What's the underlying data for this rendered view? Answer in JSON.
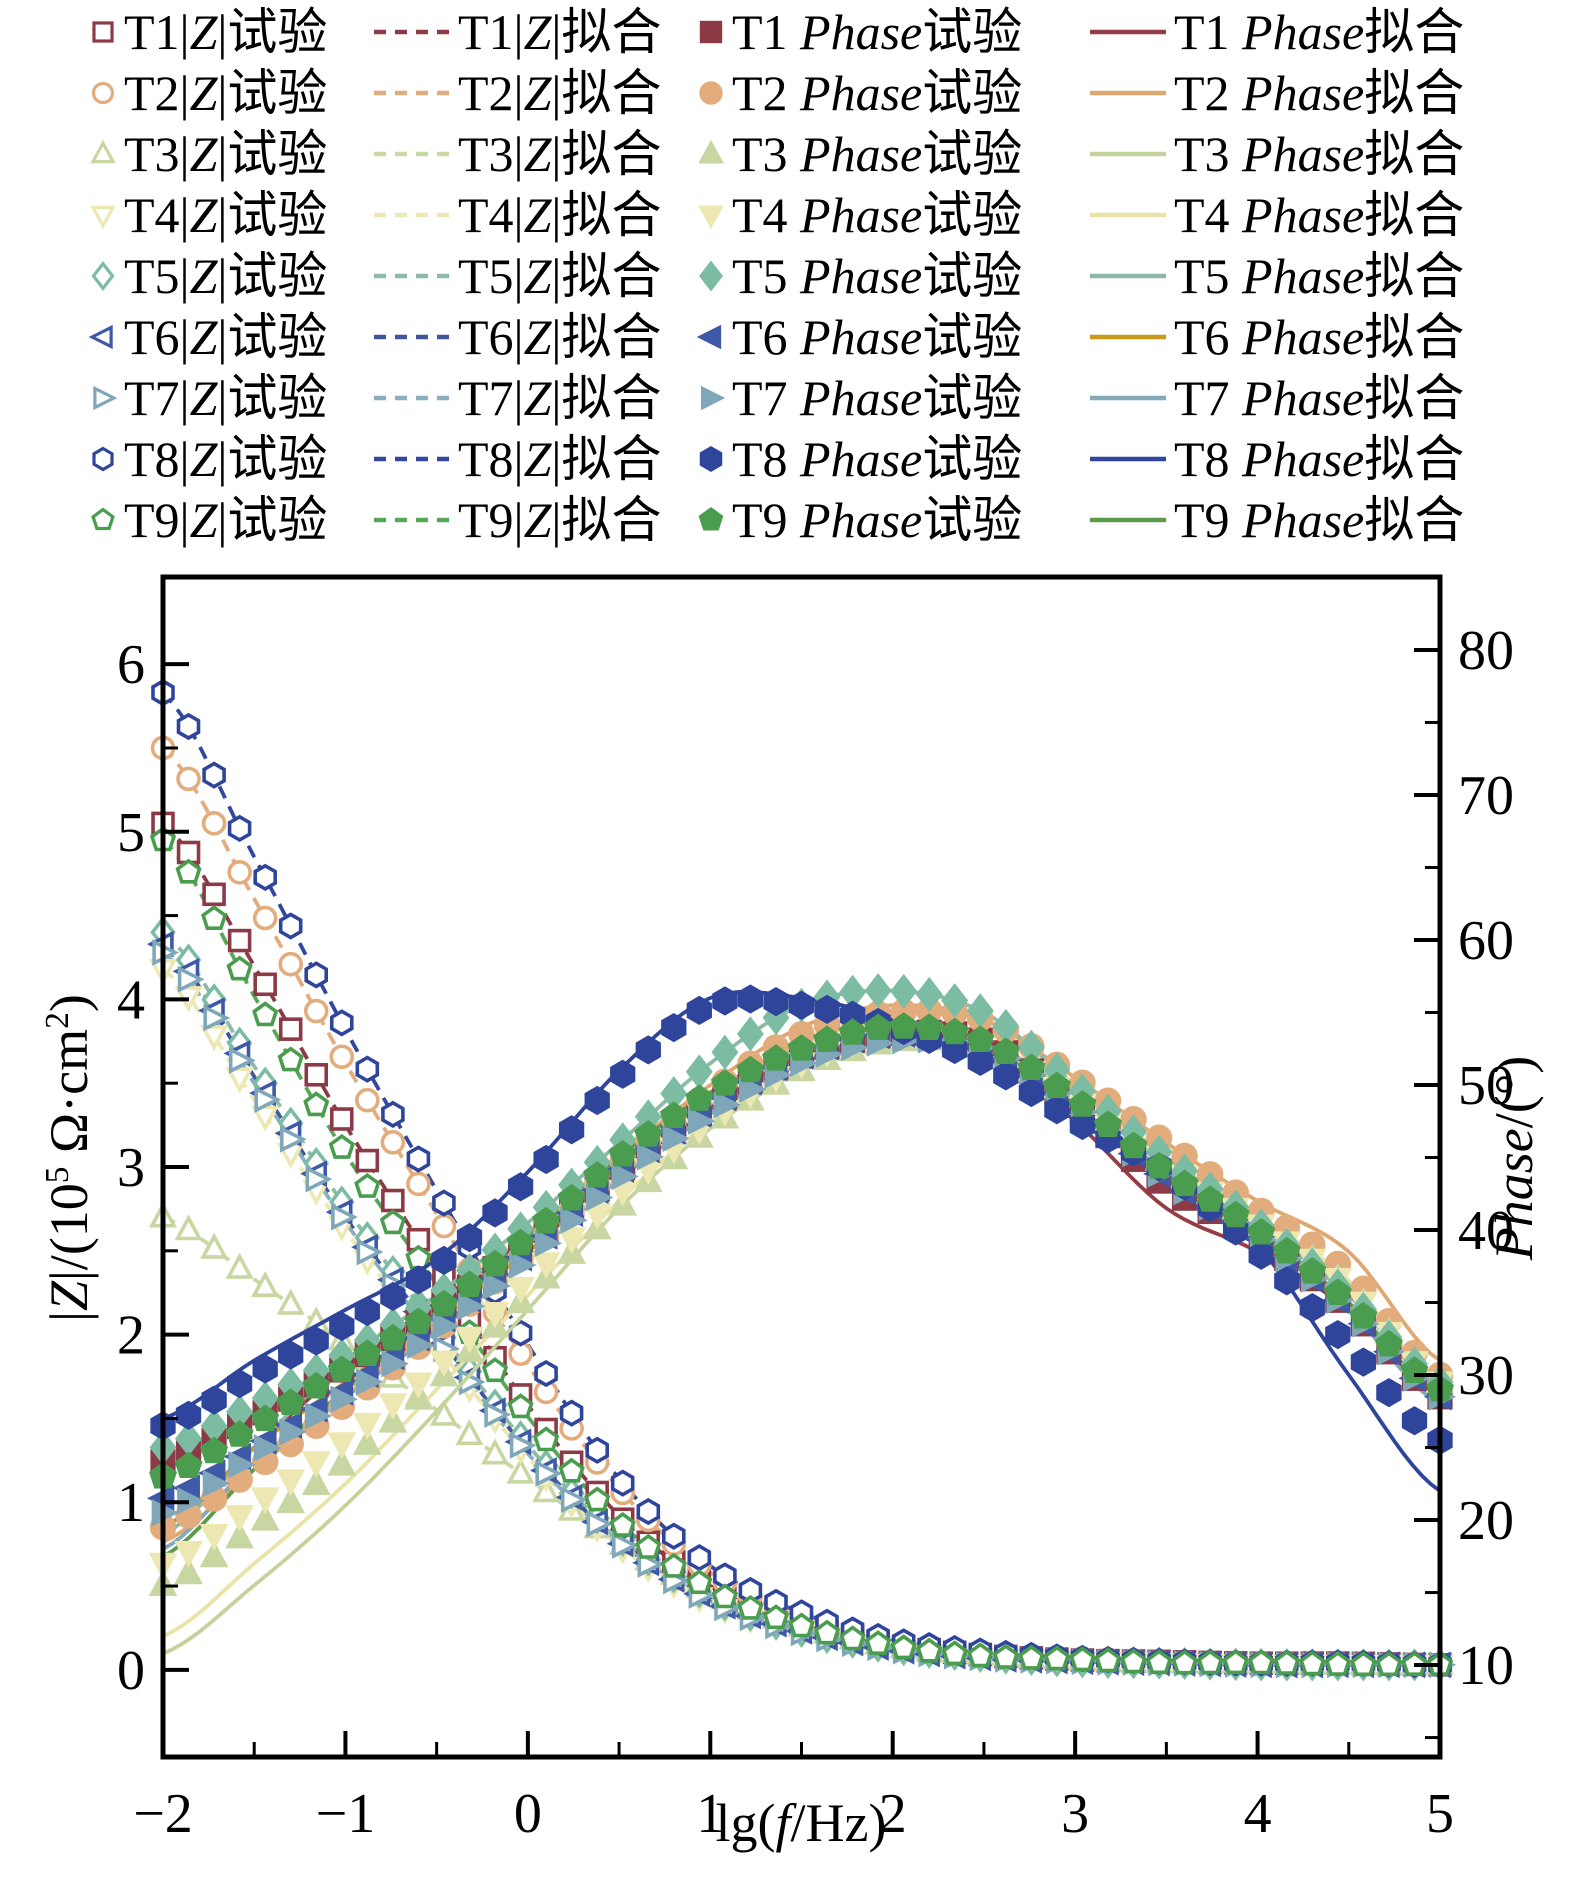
{
  "figure": {
    "background": "#ffffff"
  },
  "legend": {
    "z_wrap": "|",
    "z_letter": "Z",
    "phase_word": "Phase",
    "exp_word": "试验",
    "fit_word": "拟合"
  },
  "axes": {
    "x": {
      "title_pre": "lg(",
      "title_it": "f",
      "title_post": "/Hz)",
      "ticks": [
        "−2",
        "−1",
        "0",
        "1",
        "2",
        "3",
        "4",
        "5"
      ],
      "tick_values": [
        -2,
        -1,
        0,
        1,
        2,
        3,
        4,
        5
      ],
      "minor_step": 0.5,
      "lim": [
        -2,
        5
      ]
    },
    "y_left": {
      "title_p1": "|",
      "title_it": "Z",
      "title_p2": "|/(10",
      "title_sup1": "5",
      "title_p3": " Ω·cm",
      "title_sup2": "2",
      "title_p4": ")",
      "ticks": [
        "0",
        "1",
        "2",
        "3",
        "4",
        "5",
        "6"
      ],
      "tick_values": [
        0,
        1,
        2,
        3,
        4,
        5,
        6
      ],
      "minor_step": 0.5,
      "lim": [
        -0.52,
        6.52
      ]
    },
    "y_right": {
      "title_it": "Phase",
      "title_post": "/(°)",
      "ticks": [
        "10",
        "20",
        "30",
        "40",
        "50",
        "60",
        "70",
        "80"
      ],
      "tick_values": [
        10,
        20,
        30,
        40,
        50,
        60,
        70,
        80
      ],
      "minor_step": 5,
      "lim": [
        3.66,
        85.03
      ]
    }
  },
  "chart_data": {
    "type": "line+scatter dual-axis Bode plot",
    "xlabel": "lg(f/Hz)",
    "ylabel_left": "|Z|/(10^5 Ω·cm^2)",
    "ylabel_right": "Phase/(°)",
    "x_anchors": [
      -2,
      -1.5,
      -1,
      -0.5,
      0,
      0.5,
      1,
      1.5,
      2,
      2.5,
      3,
      3.5,
      4,
      4.5,
      5
    ],
    "series": [
      {
        "id": "T1",
        "marker": "square",
        "color_marker": "#8C3A46",
        "color_dash": "#8C3A46",
        "color_line": "#963E48",
        "z_exp": [
          5.05,
          4.2,
          3.25,
          2.4,
          1.58,
          0.92,
          0.5,
          0.27,
          0.15,
          0.09,
          0.06,
          0.05,
          0.04,
          0.04,
          0.03
        ],
        "z_fit": [
          5.05,
          4.2,
          3.25,
          2.4,
          1.58,
          0.92,
          0.5,
          0.27,
          0.15,
          0.09,
          0.06,
          0.05,
          0.04,
          0.04,
          0.03
        ],
        "phase_exp": [
          24.0,
          27.0,
          30.5,
          34.5,
          39.0,
          44.0,
          48.5,
          52.0,
          53.5,
          53.0,
          48.5,
          43.0,
          39.5,
          34.5,
          28.5
        ],
        "phase_fit": [
          19.5,
          25.0,
          30.5,
          35.0,
          39.5,
          44.5,
          49.0,
          52.5,
          54.0,
          52.5,
          47.5,
          41.5,
          38.5,
          34.5,
          28.5
        ]
      },
      {
        "id": "T2",
        "marker": "circle",
        "color_marker": "#E3AC7D",
        "color_dash": "#E3AC7D",
        "color_line": "#DFA76F",
        "z_exp": [
          5.5,
          4.6,
          3.62,
          2.72,
          1.82,
          1.08,
          0.58,
          0.31,
          0.17,
          0.1,
          0.07,
          0.05,
          0.04,
          0.04,
          0.03
        ],
        "z_fit": [
          5.5,
          4.6,
          3.62,
          2.72,
          1.82,
          1.08,
          0.58,
          0.31,
          0.17,
          0.1,
          0.07,
          0.05,
          0.04,
          0.04,
          0.03
        ],
        "phase_exp": [
          19.5,
          23.5,
          28.0,
          33.0,
          38.5,
          44.5,
          49.5,
          53.5,
          55.0,
          54.5,
          50.5,
          46.0,
          41.5,
          37.0,
          30.0
        ],
        "phase_fit": [
          18.5,
          23.5,
          28.5,
          33.5,
          39.0,
          45.0,
          50.0,
          54.0,
          55.5,
          54.5,
          50.5,
          46.0,
          42.0,
          38.5,
          31.0
        ]
      },
      {
        "id": "T3",
        "marker": "triangle-up",
        "color_marker": "#C8D7A2",
        "color_dash": "#C9D9A4",
        "color_line": "#C4D39B",
        "z_exp": [
          2.7,
          2.33,
          1.95,
          1.55,
          1.14,
          0.76,
          0.46,
          0.26,
          0.14,
          0.09,
          0.06,
          0.04,
          0.04,
          0.03,
          0.03
        ],
        "z_fit": [
          2.7,
          2.33,
          1.95,
          1.55,
          1.14,
          0.76,
          0.46,
          0.26,
          0.14,
          0.09,
          0.06,
          0.04,
          0.04,
          0.03,
          0.03
        ],
        "phase_exp": [
          15.5,
          19.5,
          24.0,
          29.5,
          35.5,
          41.5,
          47.0,
          51.0,
          53.0,
          52.5,
          49.0,
          44.5,
          40.5,
          36.0,
          29.5
        ],
        "phase_fit": [
          10.8,
          15.5,
          21.0,
          27.5,
          34.5,
          41.5,
          47.0,
          51.0,
          53.5,
          53.0,
          49.5,
          45.0,
          41.0,
          36.5,
          29.5
        ]
      },
      {
        "id": "T4",
        "marker": "triangle-down",
        "color_marker": "#EDE7B1",
        "color_dash": "#EDE7B1",
        "color_line": "#EAE3A8",
        "z_exp": [
          4.18,
          3.4,
          2.62,
          1.93,
          1.27,
          0.74,
          0.4,
          0.22,
          0.12,
          0.07,
          0.05,
          0.04,
          0.03,
          0.03,
          0.03
        ],
        "z_fit": [
          4.18,
          3.4,
          2.62,
          1.93,
          1.27,
          0.74,
          0.4,
          0.22,
          0.12,
          0.07,
          0.05,
          0.04,
          0.03,
          0.03,
          0.03
        ],
        "phase_exp": [
          17.0,
          21.0,
          25.5,
          30.5,
          36.5,
          42.5,
          47.5,
          51.5,
          53.5,
          52.5,
          49.0,
          44.5,
          40.5,
          36.0,
          29.5
        ],
        "phase_fit": [
          12.0,
          17.0,
          22.5,
          29.0,
          35.5,
          42.0,
          47.5,
          51.5,
          53.5,
          53.0,
          49.0,
          45.0,
          41.0,
          36.5,
          29.5
        ]
      },
      {
        "id": "T5",
        "marker": "diamond",
        "color_marker": "#7CBCA2",
        "color_dash": "#8CBBA6",
        "color_line": "#8CBAA4",
        "z_exp": [
          4.4,
          3.6,
          2.76,
          2.04,
          1.34,
          0.79,
          0.43,
          0.23,
          0.13,
          0.08,
          0.05,
          0.04,
          0.03,
          0.03,
          0.03
        ],
        "z_fit": [
          4.4,
          3.6,
          2.76,
          2.04,
          1.34,
          0.79,
          0.43,
          0.23,
          0.13,
          0.08,
          0.05,
          0.04,
          0.03,
          0.03,
          0.03
        ],
        "phase_exp": [
          25.0,
          28.0,
          31.5,
          35.5,
          40.5,
          46.0,
          51.5,
          55.5,
          56.5,
          55.0,
          50.0,
          45.0,
          40.5,
          35.5,
          29.5
        ],
        "phase_fit": [
          19.0,
          25.0,
          31.0,
          35.5,
          40.5,
          46.0,
          51.5,
          55.5,
          56.5,
          55.0,
          50.0,
          45.0,
          40.5,
          35.5,
          29.0
        ]
      },
      {
        "id": "T6",
        "marker": "triangle-left",
        "color_marker": "#3E59A7",
        "color_dash": "#41549E",
        "color_line": "#C79A1B",
        "z_exp": [
          4.33,
          3.54,
          2.7,
          2.0,
          1.31,
          0.77,
          0.42,
          0.23,
          0.12,
          0.07,
          0.05,
          0.04,
          0.03,
          0.03,
          0.03
        ],
        "z_fit": [
          4.33,
          3.54,
          2.7,
          2.0,
          1.31,
          0.77,
          0.42,
          0.23,
          0.12,
          0.07,
          0.05,
          0.04,
          0.03,
          0.03,
          0.03
        ],
        "phase_exp": [
          21.5,
          25.0,
          29.0,
          33.5,
          38.5,
          44.0,
          48.5,
          52.0,
          53.5,
          52.5,
          48.5,
          43.5,
          39.5,
          34.5,
          28.5
        ],
        "phase_fit": [
          19.5,
          25.0,
          29.5,
          34.0,
          38.5,
          44.0,
          48.5,
          52.0,
          53.5,
          52.5,
          48.5,
          44.0,
          39.5,
          34.5,
          28.0
        ]
      },
      {
        "id": "T7",
        "marker": "triangle-right",
        "color_marker": "#7FA7B9",
        "color_dash": "#89AEBE",
        "color_line": "#84A8B8",
        "z_exp": [
          4.28,
          3.5,
          2.67,
          1.97,
          1.29,
          0.76,
          0.41,
          0.22,
          0.12,
          0.07,
          0.05,
          0.04,
          0.03,
          0.03,
          0.03
        ],
        "z_fit": [
          4.28,
          3.5,
          2.67,
          1.97,
          1.29,
          0.76,
          0.41,
          0.22,
          0.12,
          0.07,
          0.05,
          0.04,
          0.03,
          0.03,
          0.03
        ],
        "phase_exp": [
          20.5,
          24.5,
          28.5,
          33.0,
          38.0,
          43.5,
          48.0,
          51.5,
          53.0,
          52.5,
          48.5,
          43.5,
          39.5,
          34.5,
          28.5
        ],
        "phase_fit": [
          18.0,
          24.0,
          28.5,
          33.0,
          38.0,
          43.5,
          48.0,
          51.5,
          53.0,
          52.5,
          48.5,
          44.0,
          39.5,
          34.5,
          28.0
        ]
      },
      {
        "id": "T8",
        "marker": "hexagon",
        "color_marker": "#2F459C",
        "color_dash": "#33479F",
        "color_line": "#2F459C",
        "z_exp": [
          5.83,
          4.85,
          3.82,
          2.86,
          1.94,
          1.14,
          0.62,
          0.34,
          0.18,
          0.11,
          0.07,
          0.05,
          0.04,
          0.04,
          0.03
        ],
        "z_fit": [
          5.83,
          4.85,
          3.82,
          2.86,
          1.94,
          1.14,
          0.62,
          0.34,
          0.18,
          0.11,
          0.07,
          0.05,
          0.04,
          0.04,
          0.03
        ],
        "phase_exp": [
          26.5,
          30.0,
          33.5,
          37.5,
          43.5,
          50.5,
          55.5,
          55.5,
          54.0,
          51.5,
          47.5,
          44.0,
          38.5,
          32.0,
          25.5
        ],
        "phase_fit": [
          27.0,
          31.0,
          34.5,
          38.0,
          44.0,
          51.0,
          56.0,
          56.0,
          54.5,
          52.0,
          48.0,
          44.5,
          39.0,
          30.0,
          22.0
        ]
      },
      {
        "id": "T9",
        "marker": "pentagon",
        "color_marker": "#4A9C4E",
        "color_dash": "#58A759",
        "color_line": "#5C9B4C",
        "z_exp": [
          4.95,
          4.02,
          3.08,
          2.3,
          1.51,
          0.88,
          0.48,
          0.26,
          0.14,
          0.08,
          0.06,
          0.04,
          0.04,
          0.03,
          0.03
        ],
        "z_fit": [
          4.95,
          4.02,
          3.08,
          2.3,
          1.51,
          0.88,
          0.48,
          0.26,
          0.14,
          0.08,
          0.06,
          0.04,
          0.04,
          0.03,
          0.03
        ],
        "phase_exp": [
          23.0,
          26.5,
          30.5,
          34.5,
          39.5,
          45.0,
          49.5,
          52.5,
          54.0,
          53.0,
          49.0,
          44.0,
          40.0,
          35.0,
          29.0
        ],
        "phase_fit": [
          17.5,
          23.5,
          29.0,
          34.0,
          39.5,
          45.0,
          49.5,
          52.5,
          54.0,
          53.0,
          49.0,
          44.5,
          40.0,
          35.0,
          28.5
        ]
      }
    ]
  }
}
